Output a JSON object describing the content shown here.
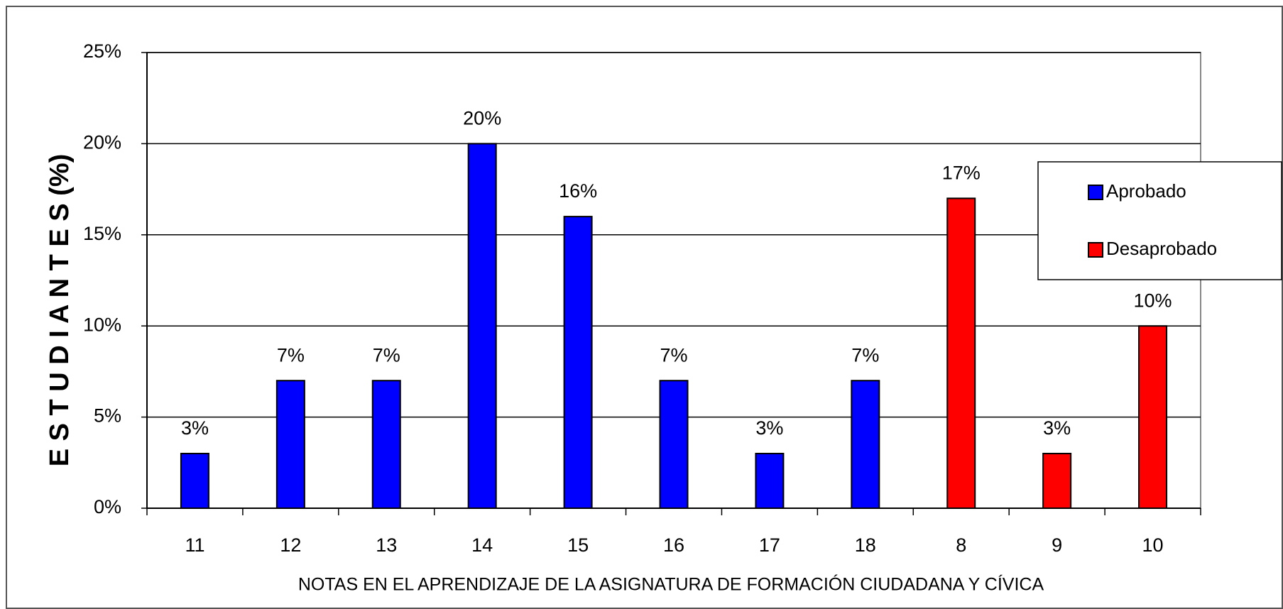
{
  "chart_data": {
    "type": "bar",
    "ylabel": "E S T U D I A N T E S (%)",
    "xlabel": "NOTAS EN EL APRENDIZAJE DE LA ASIGNATURA DE FORMACIÓN CIUDADANA Y CÍVICA",
    "categories": [
      "11",
      "12",
      "13",
      "14",
      "15",
      "16",
      "17",
      "18",
      "8",
      "9",
      "10"
    ],
    "series": [
      {
        "name": "Aprobado",
        "color": "#0000ff",
        "values": [
          3,
          7,
          7,
          20,
          16,
          7,
          3,
          7,
          null,
          null,
          null
        ],
        "value_labels": [
          "3%",
          "7%",
          "7%",
          "20%",
          "16%",
          "7%",
          "3%",
          "7%",
          null,
          null,
          null
        ]
      },
      {
        "name": "Desaprobado",
        "color": "#ff0000",
        "values": [
          null,
          null,
          null,
          null,
          null,
          null,
          null,
          null,
          17,
          3,
          10
        ],
        "value_labels": [
          null,
          null,
          null,
          null,
          null,
          null,
          null,
          null,
          "17%",
          "3%",
          "10%"
        ]
      }
    ],
    "ylim": [
      0,
      25
    ],
    "yticks": [
      {
        "value": 0,
        "label": "0%"
      },
      {
        "value": 5,
        "label": "5%"
      },
      {
        "value": 10,
        "label": "10%"
      },
      {
        "value": 15,
        "label": "15%"
      },
      {
        "value": 20,
        "label": "20%"
      },
      {
        "value": 25,
        "label": "25%"
      }
    ],
    "grid": true,
    "legend": "right"
  }
}
